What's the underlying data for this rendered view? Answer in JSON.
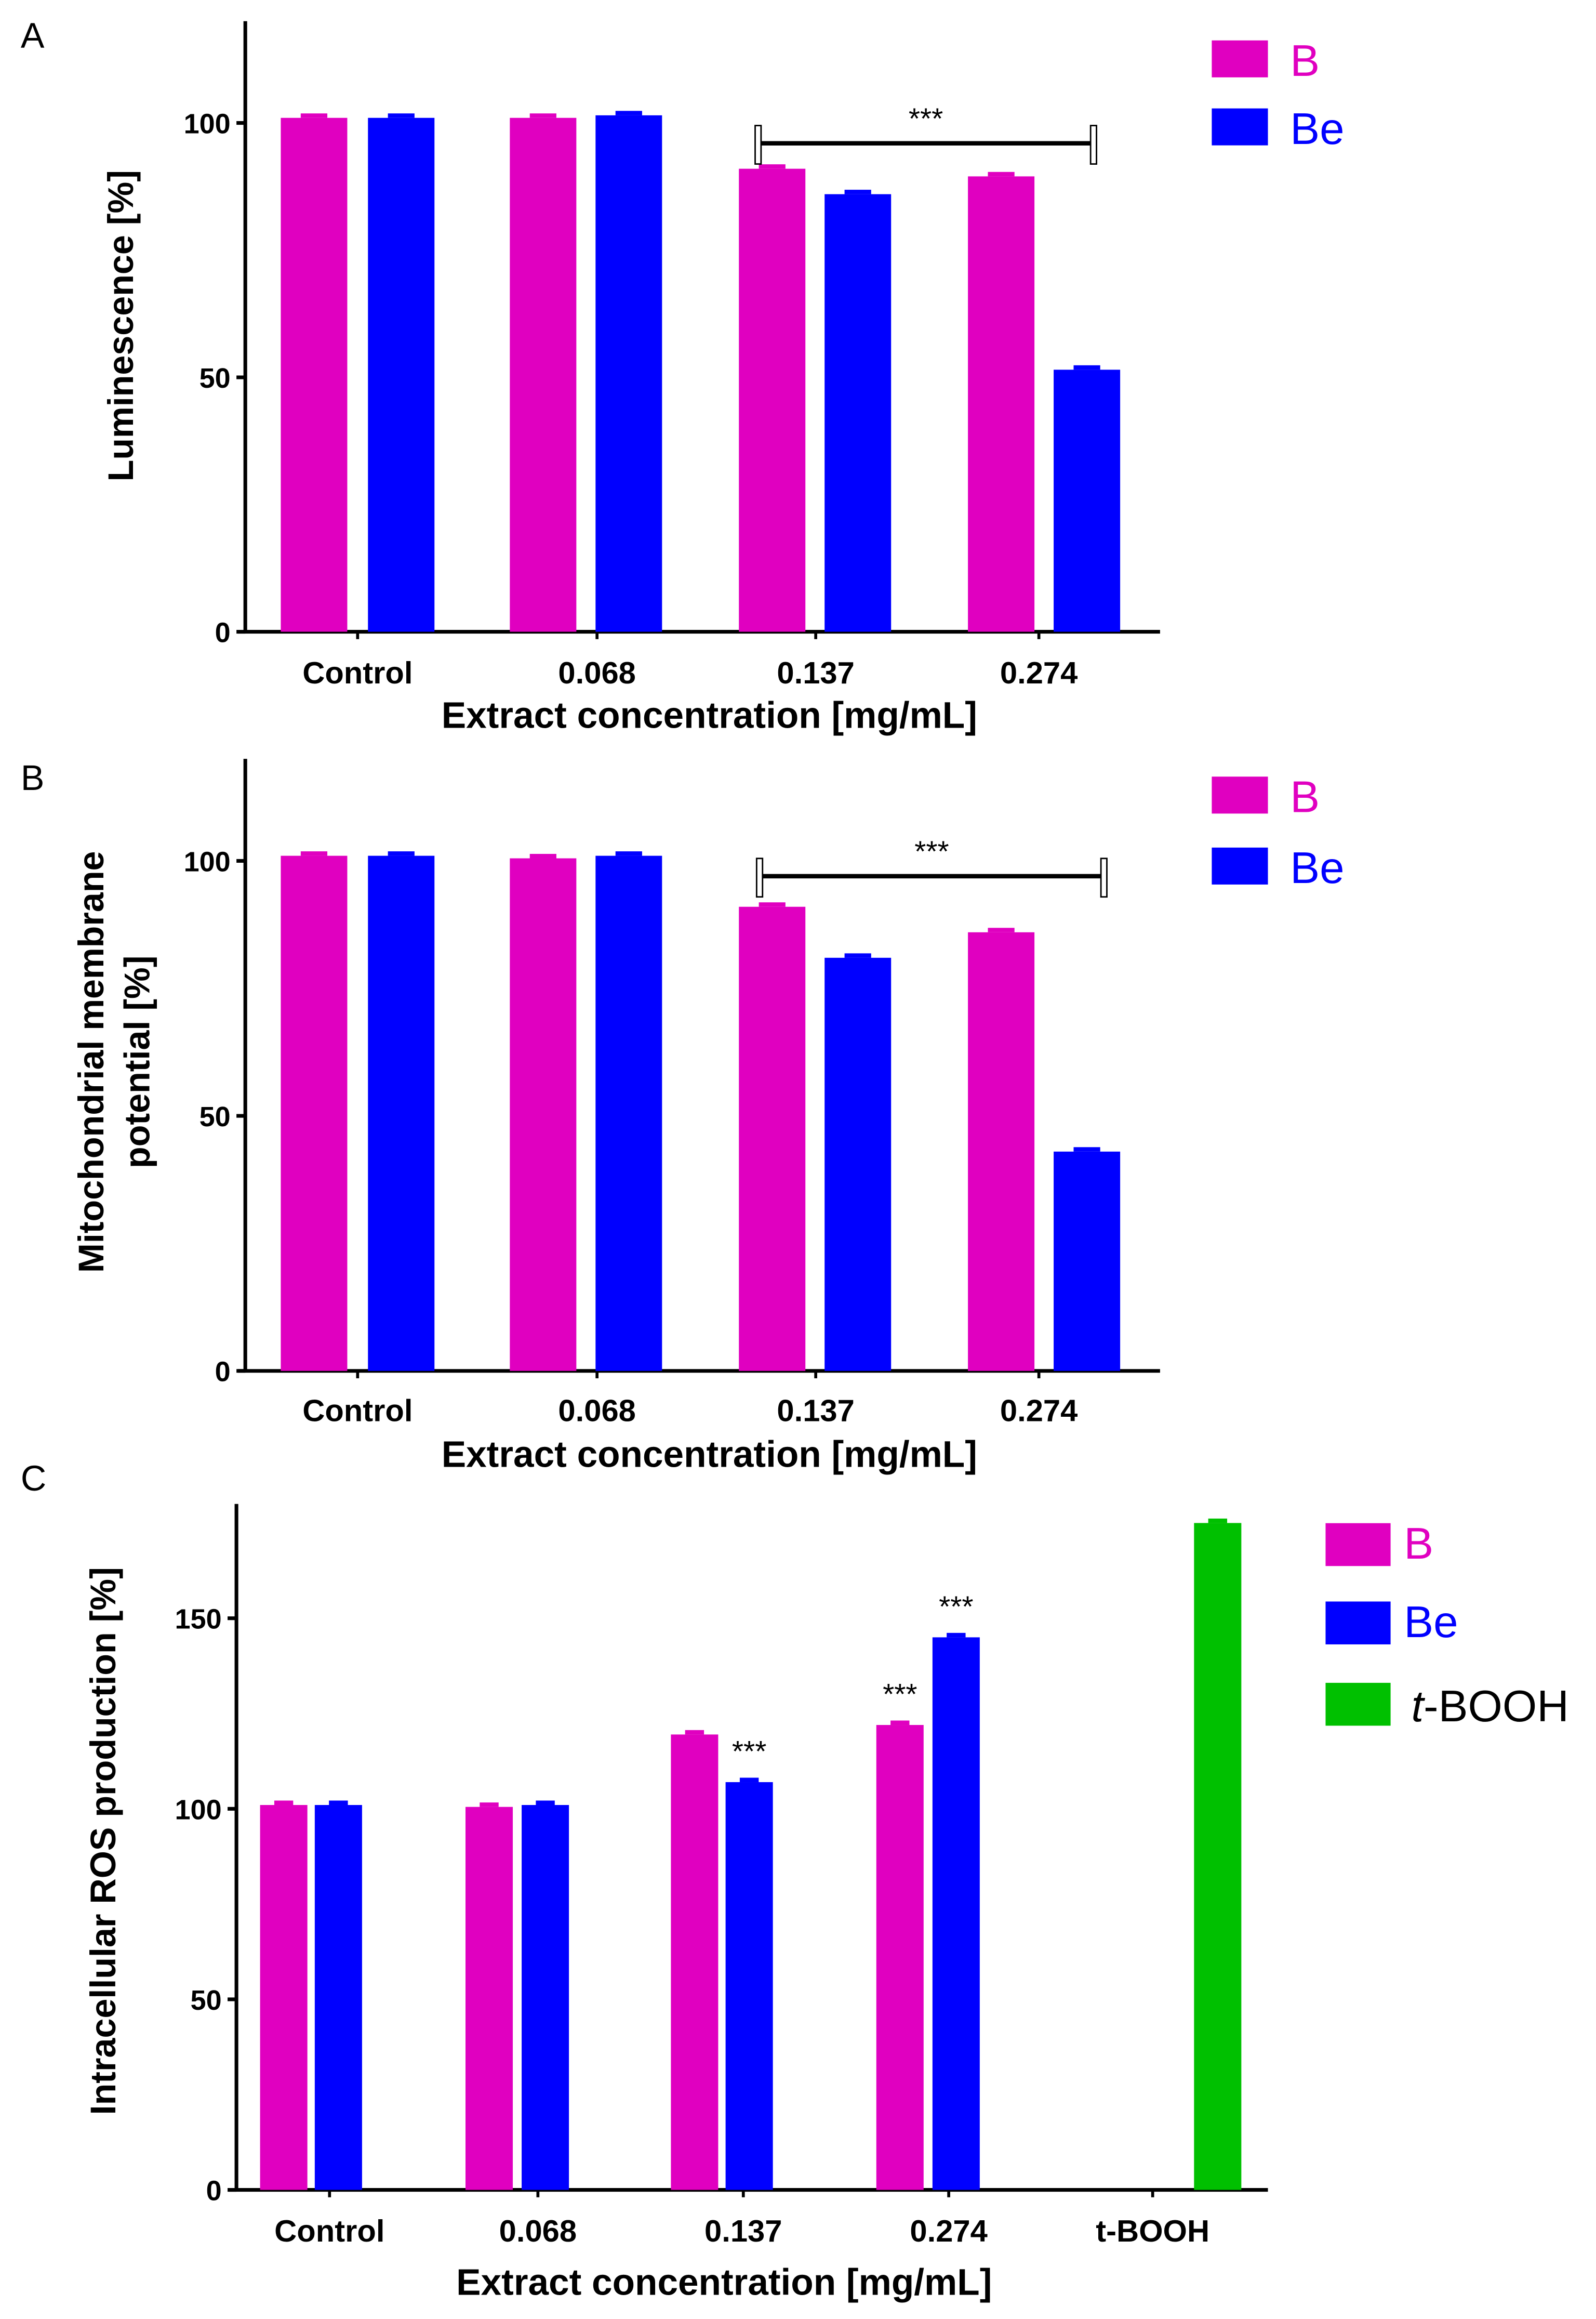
{
  "chart_data": [
    {
      "type": "bar",
      "panel": "A",
      "ylabel": "Luminescence [%]",
      "xlabel": "Extract concentration [mg/mL]",
      "categories": [
        "Control",
        "0.068",
        "0.137",
        "0.274"
      ],
      "yticks": [
        0,
        50,
        100
      ],
      "ylim": [
        0,
        120
      ],
      "series": [
        {
          "name": "B",
          "color": "#e000c0",
          "values": [
            101,
            101,
            91,
            89.5
          ]
        },
        {
          "name": "Be",
          "color": "#0000ff",
          "values": [
            101,
            101.5,
            86,
            51.5
          ]
        }
      ],
      "annotations": [
        {
          "text": "***",
          "type": "bracket",
          "from": "0.137",
          "to": "0.274",
          "y": 96
        }
      ]
    },
    {
      "type": "bar",
      "panel": "B",
      "ylabel_lines": [
        "Mitochondrial membrane",
        "potential [%]"
      ],
      "xlabel": "Extract concentration [mg/mL]",
      "categories": [
        "Control",
        "0.068",
        "0.137",
        "0.274"
      ],
      "yticks": [
        0,
        50,
        100
      ],
      "ylim": [
        0,
        120
      ],
      "series": [
        {
          "name": "B",
          "color": "#e000c0",
          "values": [
            101,
            100.5,
            91,
            86
          ]
        },
        {
          "name": "Be",
          "color": "#0000ff",
          "values": [
            101,
            101,
            81,
            43
          ]
        }
      ],
      "annotations": [
        {
          "text": "***",
          "type": "bracket",
          "from": "0.137",
          "to": "0.274",
          "y": 97
        }
      ]
    },
    {
      "type": "bar",
      "panel": "C",
      "ylabel": "Intracellular ROS production [%]",
      "xlabel": "Extract concentration [mg/mL]",
      "categories": [
        "Control",
        "0.068",
        "0.137",
        "0.274",
        "t-BOOH"
      ],
      "yticks": [
        0,
        50,
        100,
        150
      ],
      "ylim": [
        0,
        180
      ],
      "series": [
        {
          "name": "B",
          "color": "#e000c0",
          "values": [
            101,
            100.5,
            119.5,
            122,
            null
          ]
        },
        {
          "name": "Be",
          "color": "#0000ff",
          "values": [
            101,
            101,
            107,
            145,
            null
          ]
        },
        {
          "name": "t-BOOH",
          "legend_prefix": "t",
          "legend_suffix": "-BOOH",
          "color": "#00c000",
          "values": [
            null,
            null,
            null,
            null,
            175
          ]
        }
      ],
      "annotations": [
        {
          "text": "***",
          "series": "Be",
          "category": "0.137"
        },
        {
          "text": "***",
          "series": "B",
          "category": "0.274"
        },
        {
          "text": "***",
          "series": "Be",
          "category": "0.274"
        }
      ]
    }
  ]
}
